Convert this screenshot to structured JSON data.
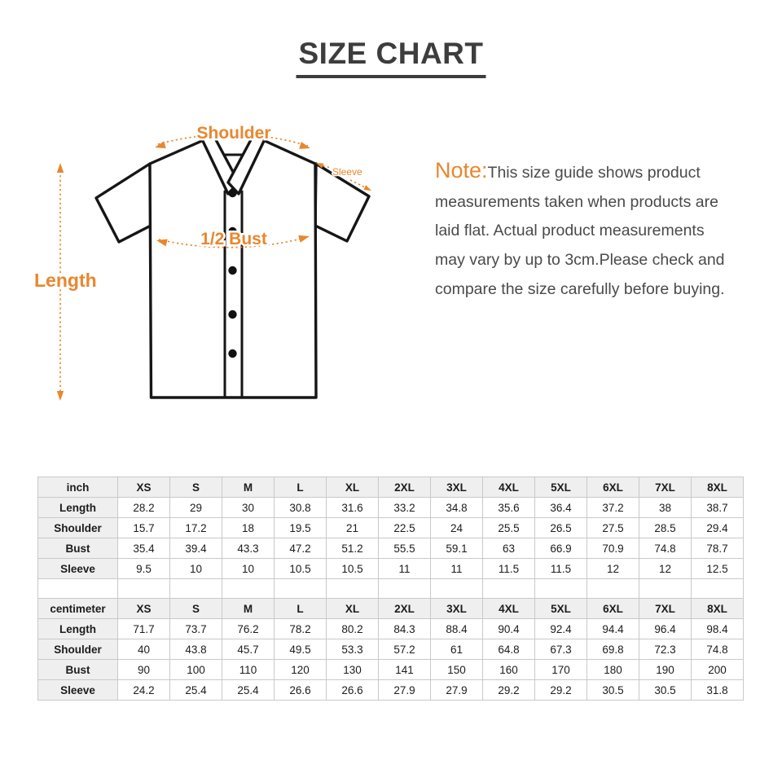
{
  "title": "SIZE CHART",
  "colors": {
    "accent_orange": "#e8872e",
    "title_dark": "#3d3d3d",
    "note_text": "#4a4a4a",
    "table_border": "#c9c9c9",
    "table_header_bg": "#efefef",
    "shirt_outline": "#161616"
  },
  "diagram": {
    "labels": {
      "shoulder": "Shoulder",
      "sleeve": "Sleeve",
      "bust": "1/2 Bust",
      "length": "Length"
    }
  },
  "note": {
    "label": "Note:",
    "lines": [
      "This size guide shows product",
      "measurements taken when products are",
      "laid flat. Actual product measurements",
      "may vary by up to 3cm.Please check and",
      "compare the size carefully before buying."
    ]
  },
  "size_tables": [
    {
      "unit": "inch",
      "sizes": [
        "XS",
        "S",
        "M",
        "L",
        "XL",
        "2XL",
        "3XL",
        "4XL",
        "5XL",
        "6XL",
        "7XL",
        "8XL"
      ],
      "rows": [
        {
          "label": "Length",
          "values": [
            "28.2",
            "29",
            "30",
            "30.8",
            "31.6",
            "33.2",
            "34.8",
            "35.6",
            "36.4",
            "37.2",
            "38",
            "38.7"
          ]
        },
        {
          "label": "Shoulder",
          "values": [
            "15.7",
            "17.2",
            "18",
            "19.5",
            "21",
            "22.5",
            "24",
            "25.5",
            "26.5",
            "27.5",
            "28.5",
            "29.4"
          ]
        },
        {
          "label": "Bust",
          "values": [
            "35.4",
            "39.4",
            "43.3",
            "47.2",
            "51.2",
            "55.5",
            "59.1",
            "63",
            "66.9",
            "70.9",
            "74.8",
            "78.7"
          ]
        },
        {
          "label": "Sleeve",
          "values": [
            "9.5",
            "10",
            "10",
            "10.5",
            "10.5",
            "11",
            "11",
            "11.5",
            "11.5",
            "12",
            "12",
            "12.5"
          ]
        }
      ]
    },
    {
      "unit": "centimeter",
      "sizes": [
        "XS",
        "S",
        "M",
        "L",
        "XL",
        "2XL",
        "3XL",
        "4XL",
        "5XL",
        "6XL",
        "7XL",
        "8XL"
      ],
      "rows": [
        {
          "label": "Length",
          "values": [
            "71.7",
            "73.7",
            "76.2",
            "78.2",
            "80.2",
            "84.3",
            "88.4",
            "90.4",
            "92.4",
            "94.4",
            "96.4",
            "98.4"
          ]
        },
        {
          "label": "Shoulder",
          "values": [
            "40",
            "43.8",
            "45.7",
            "49.5",
            "53.3",
            "57.2",
            "61",
            "64.8",
            "67.3",
            "69.8",
            "72.3",
            "74.8"
          ]
        },
        {
          "label": "Bust",
          "values": [
            "90",
            "100",
            "110",
            "120",
            "130",
            "141",
            "150",
            "160",
            "170",
            "180",
            "190",
            "200"
          ]
        },
        {
          "label": "Sleeve",
          "values": [
            "24.2",
            "25.4",
            "25.4",
            "26.6",
            "26.6",
            "27.9",
            "27.9",
            "29.2",
            "29.2",
            "30.5",
            "30.5",
            "31.8"
          ]
        }
      ]
    }
  ]
}
